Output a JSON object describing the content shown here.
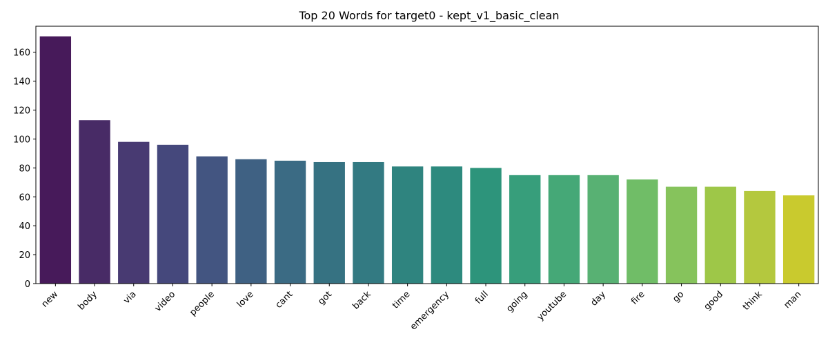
{
  "chart_data": {
    "type": "bar",
    "title": "Top 20 Words for target0 - kept_v1_basic_clean",
    "xlabel": "",
    "ylabel": "",
    "categories": [
      "new",
      "body",
      "via",
      "video",
      "people",
      "love",
      "cant",
      "got",
      "back",
      "time",
      "emergency",
      "full",
      "going",
      "youtube",
      "day",
      "fire",
      "go",
      "good",
      "think",
      "man"
    ],
    "values": [
      171,
      113,
      98,
      96,
      88,
      86,
      85,
      84,
      84,
      81,
      81,
      80,
      75,
      75,
      75,
      72,
      67,
      67,
      64,
      61
    ],
    "ylim": [
      0,
      178
    ],
    "yticks": [
      0,
      20,
      40,
      60,
      80,
      100,
      120,
      140,
      160
    ],
    "colors": [
      "#471a5a",
      "#482b66",
      "#483a72",
      "#45487c",
      "#435581",
      "#3f6183",
      "#3b6b84",
      "#367282",
      "#337a82",
      "#2f847f",
      "#2d8a7e",
      "#2d947b",
      "#379e7b",
      "#45a877",
      "#58b173",
      "#70bd67",
      "#86c35c",
      "#9ec748",
      "#b4c83e",
      "#c9ca2e"
    ],
    "grid": false,
    "legend": "none"
  }
}
